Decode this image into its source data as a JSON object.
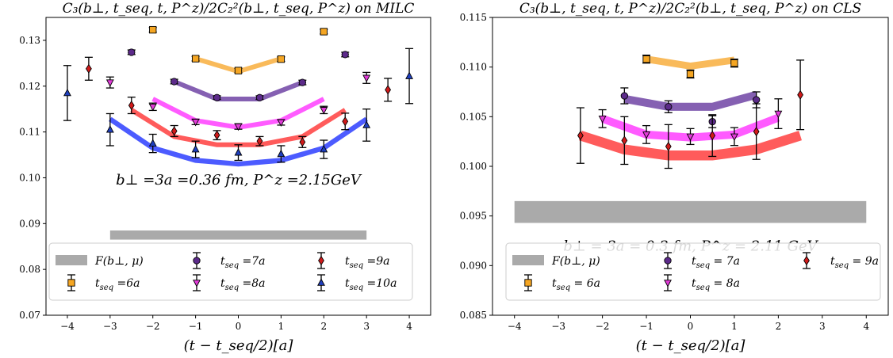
{
  "chart_data": [
    {
      "id": "milc",
      "type": "scatter",
      "title": "C₃(b⊥, t_seq, t, P^z)/2C₂²(b⊥, t_seq, P^z) on MILC",
      "xlabel": "(t − t_seq/2)[a]",
      "ylabel": "",
      "xlim": [
        -4.5,
        4.5
      ],
      "ylim": [
        0.07,
        0.135
      ],
      "xticks": [
        -4,
        -3,
        -2,
        -1,
        0,
        1,
        2,
        3,
        4
      ],
      "yticks": [
        0.07,
        0.08,
        0.09,
        0.1,
        0.11,
        0.12,
        0.13
      ],
      "xtick_labels": [
        "−4",
        "−3",
        "−2",
        "−1",
        "0",
        "1",
        "2",
        "3",
        "4"
      ],
      "ytick_labels": [
        "0.07",
        "0.08",
        "0.09",
        "0.10",
        "0.11",
        "0.12",
        "0.13"
      ],
      "grid": false,
      "annotation": "b⊥ =3a =0.36 fm, P^z =2.15GeV",
      "band": {
        "label": "F(b⊥, μ)",
        "x": [
          -3,
          3
        ],
        "y": [
          0.0865,
          0.0885
        ],
        "color": "#aaaaaa"
      },
      "legend": {
        "position": "bottom",
        "columns": 3,
        "items": [
          "F(b⊥, μ)",
          "t_seq =7a",
          "t_seq =9a",
          "t_seq =6a",
          "t_seq =8a",
          "t_seq =10a"
        ]
      },
      "series": [
        {
          "name": "t_seq =6a",
          "marker": "square",
          "color": "#f5a623",
          "band_color": "#f9b44c",
          "x": [
            -2,
            -1,
            0,
            1,
            2
          ],
          "y": [
            0.1323,
            0.126,
            0.1234,
            0.1259,
            0.1319
          ],
          "err": [
            0.0005,
            0.0005,
            0.0005,
            0.0005,
            0.0005
          ],
          "fit": {
            "x": [
              -1,
              0,
              1
            ],
            "y": [
              0.126,
              0.1232,
              0.126
            ],
            "width": 0.0008
          }
        },
        {
          "name": "t_seq =7a",
          "marker": "circle",
          "color": "#5c2a8a",
          "band_color": "#7b52ab",
          "x": [
            -2.5,
            -1.5,
            -0.5,
            0.5,
            1.5,
            2.5
          ],
          "y": [
            0.1274,
            0.121,
            0.1175,
            0.1175,
            0.1208,
            0.1269
          ],
          "err": [
            0.0005,
            0.0005,
            0.0004,
            0.0004,
            0.0005,
            0.0005
          ],
          "fit": {
            "x": [
              -1.5,
              -0.5,
              0.5,
              1.5
            ],
            "y": [
              0.121,
              0.1172,
              0.1172,
              0.1208
            ],
            "width": 0.0008
          }
        },
        {
          "name": "t_seq =8a",
          "marker": "triangle-down",
          "color": "#e23bd8",
          "band_color": "#ff4dff",
          "x": [
            -3,
            -2,
            -1,
            0,
            1,
            2,
            3
          ],
          "y": [
            0.1208,
            0.1155,
            0.1122,
            0.1112,
            0.1121,
            0.1148,
            0.1218
          ],
          "err": [
            0.0012,
            0.0008,
            0.0006,
            0.0006,
            0.0006,
            0.0008,
            0.0012
          ],
          "fit": {
            "x": [
              -2,
              -1,
              0,
              1,
              2
            ],
            "y": [
              0.1172,
              0.1125,
              0.111,
              0.1125,
              0.1172
            ],
            "width": 0.0008
          }
        },
        {
          "name": "t_seq =9a",
          "marker": "diamond",
          "color": "#d11a1a",
          "band_color": "#ff4d4d",
          "x": [
            -3.5,
            -2.5,
            -1.5,
            -0.5,
            0.5,
            1.5,
            2.5,
            3.5
          ],
          "y": [
            0.1238,
            0.1158,
            0.1102,
            0.1093,
            0.108,
            0.1078,
            0.1123,
            0.1192
          ],
          "err": [
            0.0025,
            0.0018,
            0.0012,
            0.001,
            0.001,
            0.0012,
            0.0018,
            0.0025
          ],
          "fit": {
            "x": [
              -2.5,
              -1.5,
              -0.5,
              0.5,
              1.5,
              2.5
            ],
            "y": [
              0.1148,
              0.109,
              0.1072,
              0.1072,
              0.109,
              0.1148
            ],
            "width": 0.0009
          }
        },
        {
          "name": "t_seq =10a",
          "marker": "triangle-up",
          "color": "#1f3fbf",
          "band_color": "#3d4dff",
          "x": [
            -4,
            -3,
            -2,
            -1,
            0,
            1,
            2,
            3,
            4
          ],
          "y": [
            0.1185,
            0.1105,
            0.1075,
            0.1062,
            0.1055,
            0.1052,
            0.1062,
            0.1115,
            0.1222
          ],
          "err": [
            0.006,
            0.0035,
            0.002,
            0.0018,
            0.0017,
            0.0018,
            0.002,
            0.0035,
            0.006
          ],
          "fit": {
            "x": [
              -3,
              -2,
              -1,
              0,
              1,
              2,
              3
            ],
            "y": [
              0.1128,
              0.1065,
              0.1038,
              0.103,
              0.1038,
              0.1065,
              0.1128
            ],
            "width": 0.0011
          }
        }
      ]
    },
    {
      "id": "cls",
      "type": "scatter",
      "title": "C₃(b⊥, t_seq, t, P^z)/2C₂²(b⊥, t_seq, P^z) on CLS",
      "xlabel": "(t − t_seq/2)[a]",
      "ylabel": "",
      "xlim": [
        -4.5,
        4.5
      ],
      "ylim": [
        0.085,
        0.115
      ],
      "xticks": [
        -4,
        -3,
        -2,
        -1,
        0,
        1,
        2,
        3,
        4
      ],
      "yticks": [
        0.085,
        0.09,
        0.095,
        0.1,
        0.105,
        0.11,
        0.115
      ],
      "xtick_labels": [
        "−4",
        "−3",
        "−2",
        "−1",
        "0",
        "1",
        "2",
        "3",
        "4"
      ],
      "ytick_labels": [
        "0.085",
        "0.090",
        "0.095",
        "0.100",
        "0.105",
        "0.110",
        "0.115"
      ],
      "grid": false,
      "annotation": "b⊥ = 3a = 0.3 fm, P^z = 2.11 GeV",
      "band": {
        "label": "F(b⊥, μ)",
        "x": [
          -4,
          4
        ],
        "y": [
          0.0943,
          0.0965
        ],
        "color": "#aaaaaa"
      },
      "legend": {
        "position": "bottom",
        "columns": 3,
        "items": [
          "F(b⊥, μ)",
          "t_seq = 7a",
          "t_seq = 9a",
          "t_seq = 6a",
          "t_seq = 8a"
        ]
      },
      "series": [
        {
          "name": "t_seq = 6a",
          "marker": "square",
          "color": "#f5a623",
          "band_color": "#f9b44c",
          "x": [
            -1,
            0,
            1
          ],
          "y": [
            0.1108,
            0.1093,
            0.1104
          ],
          "err": [
            0.0004,
            0.0004,
            0.0004
          ],
          "fit": {
            "x": [
              -1,
              0,
              1
            ],
            "y": [
              0.1108,
              0.1101,
              0.1107
            ],
            "width": 0.0007
          }
        },
        {
          "name": "t_seq = 7a",
          "marker": "circle",
          "color": "#5c2a8a",
          "band_color": "#7b52ab",
          "x": [
            -1.5,
            -0.5,
            0.5,
            1.5
          ],
          "y": [
            0.1071,
            0.106,
            0.1045,
            0.1067
          ],
          "err": [
            0.0008,
            0.0006,
            0.0006,
            0.0008
          ],
          "fit": {
            "x": [
              -1.5,
              -0.5,
              0.5,
              1.5
            ],
            "y": [
              0.1068,
              0.106,
              0.106,
              0.1072
            ],
            "width": 0.0008
          }
        },
        {
          "name": "t_seq = 8a",
          "marker": "triangle-down",
          "color": "#e23bd8",
          "band_color": "#ff4dff",
          "x": [
            -2,
            -1,
            0,
            1,
            2
          ],
          "y": [
            0.1048,
            0.1032,
            0.103,
            0.103,
            0.1053
          ],
          "err": [
            0.0009,
            0.0009,
            0.0008,
            0.0009,
            0.0015
          ],
          "fit": {
            "x": [
              -2,
              -1,
              0,
              1,
              2
            ],
            "y": [
              0.1048,
              0.1032,
              0.1029,
              0.1032,
              0.1049
            ],
            "width": 0.0008
          }
        },
        {
          "name": "t_seq = 9a",
          "marker": "diamond",
          "color": "#d11a1a",
          "band_color": "#ff4d4d",
          "x": [
            -2.5,
            -1.5,
            -0.5,
            0.5,
            1.5,
            2.5
          ],
          "y": [
            0.1031,
            0.1026,
            0.102,
            0.1031,
            0.1035,
            0.1072
          ],
          "err": [
            0.0028,
            0.0024,
            0.0022,
            0.0021,
            0.0028,
            0.0035
          ],
          "fit": {
            "x": [
              -2.5,
              -1.5,
              -0.5,
              0.5,
              1.5,
              2.5
            ],
            "y": [
              0.1031,
              0.1017,
              0.1011,
              0.1011,
              0.1017,
              0.1031
            ],
            "width": 0.001
          }
        }
      ]
    }
  ]
}
